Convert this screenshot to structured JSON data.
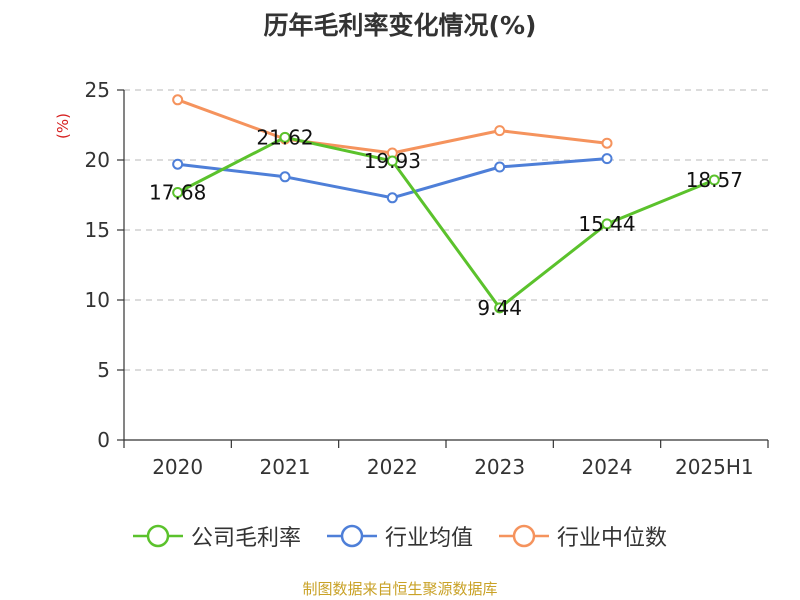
{
  "title": "历年毛利率变化情况(%)",
  "source_note": "制图数据来自恒生聚源数据库",
  "colors": {
    "company": "#5bc22c",
    "industry_avg": "#4e7fd8",
    "industry_median": "#f5935d",
    "ylabel": "#d62020",
    "source": "#c9a227"
  },
  "chart_data": {
    "type": "line",
    "title": "历年毛利率变化情况(%)",
    "xlabel": "",
    "ylabel": "(%)",
    "categories": [
      "2020",
      "2021",
      "2022",
      "2023",
      "2024",
      "2025H1"
    ],
    "ylim": [
      0,
      25
    ],
    "yticks": [
      0,
      5,
      10,
      15,
      20,
      25
    ],
    "grid": true,
    "legend_position": "bottom",
    "series": [
      {
        "name": "公司毛利率",
        "color": "#5bc22c",
        "values": [
          17.68,
          21.62,
          19.93,
          9.44,
          15.44,
          18.57
        ],
        "labels": [
          "17.68",
          "21.62",
          "19.93",
          "9.44",
          "15.44",
          "18.57"
        ]
      },
      {
        "name": "行业均值",
        "color": "#4e7fd8",
        "values": [
          19.7,
          18.8,
          17.3,
          19.5,
          20.1,
          null
        ]
      },
      {
        "name": "行业中位数",
        "color": "#f5935d",
        "values": [
          24.3,
          21.5,
          20.5,
          22.1,
          21.2,
          null
        ]
      }
    ]
  }
}
